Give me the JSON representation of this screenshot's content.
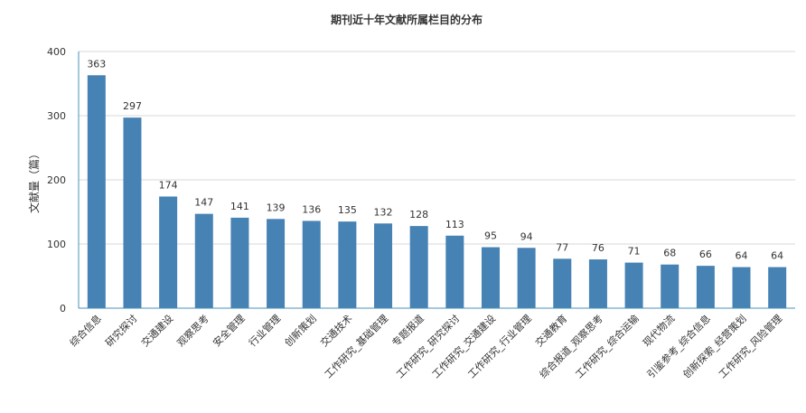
{
  "chart_data": {
    "type": "bar",
    "title": "期刊近十年文献所属栏目的分布",
    "ylabel": "文献量（篇）",
    "xlabel": "",
    "ylim": [
      0,
      400
    ],
    "yticks": [
      0,
      100,
      200,
      300,
      400
    ],
    "grid": true,
    "bar_color": "#4682b4",
    "categories": [
      "综合信息",
      "研究探讨",
      "交通建设",
      "观察思考",
      "安全管理",
      "行业管理",
      "创新策划",
      "交通技术",
      "工作研究_基础管理",
      "专题报道",
      "工作研究_研究探讨",
      "工作研究_交通建设",
      "工作研究_行业管理",
      "交通教育",
      "综合报道_观察思考",
      "工作研究_综合运输",
      "现代物流",
      "引鉴参考_综合信息",
      "创新探索_经营策划",
      "工作研究_风险管理"
    ],
    "values": [
      363,
      297,
      174,
      147,
      141,
      139,
      136,
      135,
      132,
      128,
      113,
      95,
      94,
      77,
      76,
      71,
      68,
      66,
      64,
      64
    ]
  }
}
